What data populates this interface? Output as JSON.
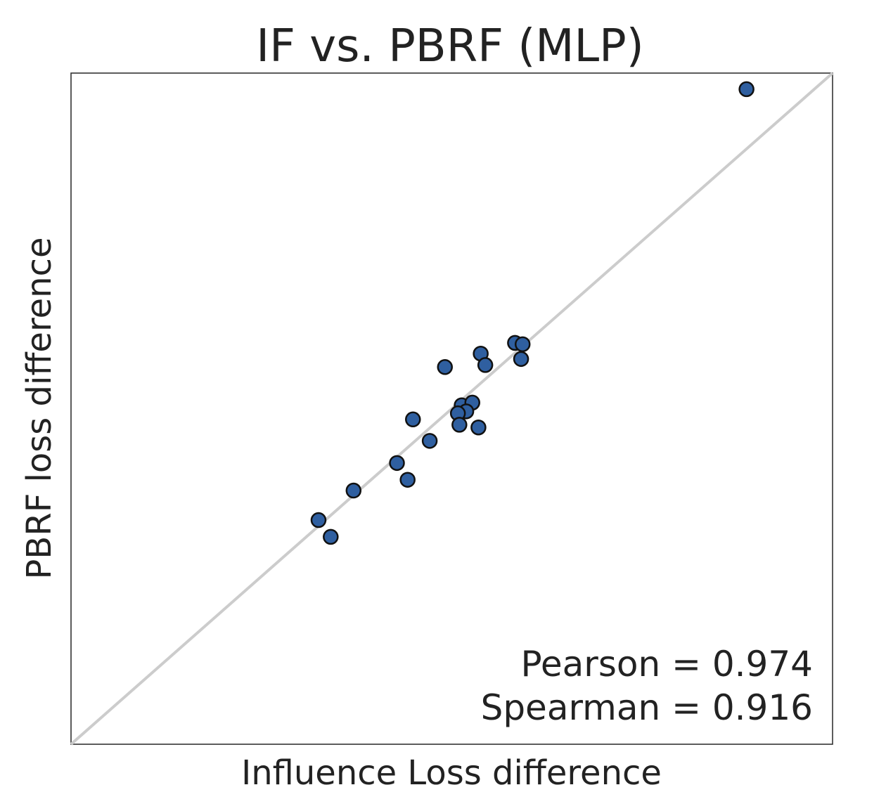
{
  "chart_data": {
    "type": "scatter",
    "title": "IF vs. PBRF (MLP)",
    "xlabel": "Influence Loss difference",
    "ylabel": "PBRF loss difference",
    "xlim": [
      0,
      100
    ],
    "ylim": [
      0,
      100
    ],
    "grid": false,
    "ticks": false,
    "marker_color": "#2f5fa0",
    "marker_edge_color": "#111111",
    "reference_line_color": "#cccccc",
    "reference_line": "y = x",
    "annotations": [
      {
        "text": "Pearson = 0.974"
      },
      {
        "text": "Spearman = 0.916"
      }
    ],
    "annotation_placement": "bottom-right",
    "points": [
      {
        "x": 88.7,
        "y": 97.6
      },
      {
        "x": 58.3,
        "y": 59.8
      },
      {
        "x": 59.3,
        "y": 59.6
      },
      {
        "x": 59.1,
        "y": 57.4
      },
      {
        "x": 53.8,
        "y": 58.2
      },
      {
        "x": 54.4,
        "y": 56.5
      },
      {
        "x": 49.1,
        "y": 56.2
      },
      {
        "x": 51.3,
        "y": 50.5
      },
      {
        "x": 52.7,
        "y": 50.9
      },
      {
        "x": 51.9,
        "y": 49.6
      },
      {
        "x": 50.8,
        "y": 49.3
      },
      {
        "x": 44.9,
        "y": 48.4
      },
      {
        "x": 51.0,
        "y": 47.6
      },
      {
        "x": 53.5,
        "y": 47.2
      },
      {
        "x": 47.1,
        "y": 45.2
      },
      {
        "x": 42.8,
        "y": 41.9
      },
      {
        "x": 44.2,
        "y": 39.4
      },
      {
        "x": 37.1,
        "y": 37.8
      },
      {
        "x": 32.5,
        "y": 33.4
      },
      {
        "x": 34.1,
        "y": 30.9
      }
    ]
  }
}
